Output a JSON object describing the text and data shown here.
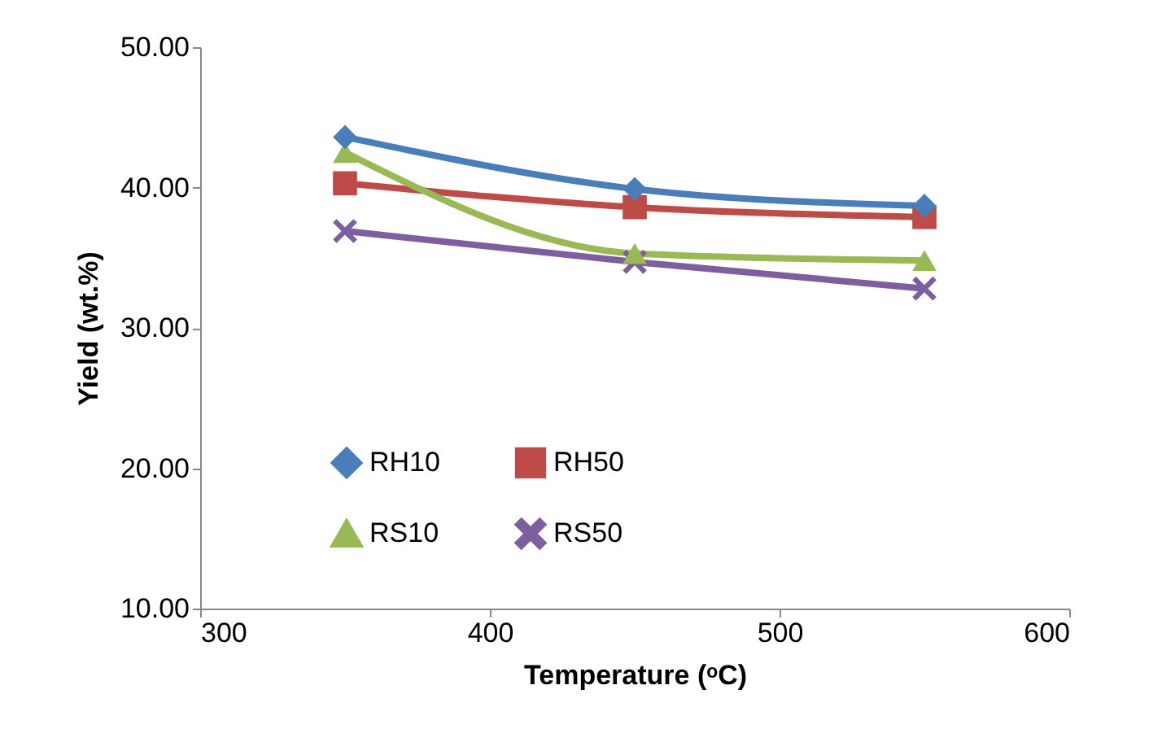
{
  "chart_data": {
    "type": "line",
    "xlabel": "Temperature (ᵒC)",
    "ylabel": "Yield (wt.%)",
    "x": [
      350,
      450,
      550
    ],
    "series": [
      {
        "name": "RH10",
        "color": "#4a7ebb",
        "marker": "diamond",
        "values": [
          43.6,
          39.9,
          38.7
        ]
      },
      {
        "name": "RH50",
        "color": "#be4b48",
        "marker": "square",
        "values": [
          40.3,
          38.6,
          37.9
        ]
      },
      {
        "name": "RS10",
        "color": "#98b954",
        "marker": "triangle",
        "values": [
          42.5,
          35.3,
          34.8
        ]
      },
      {
        "name": "RS50",
        "color": "#7d5fa0",
        "marker": "cross",
        "values": [
          36.9,
          34.7,
          32.8
        ]
      }
    ],
    "xlim": [
      300,
      600
    ],
    "xticks": [
      300,
      400,
      500,
      600
    ],
    "ylim": [
      10,
      50
    ],
    "yticks": [
      {
        "value": 10,
        "label": "10.00"
      },
      {
        "value": 20,
        "label": "20.00"
      },
      {
        "value": 30,
        "label": "30.00"
      },
      {
        "value": 40,
        "label": "40.00"
      },
      {
        "value": 50,
        "label": "50.00"
      }
    ],
    "grid": false,
    "legend": "bottom left",
    "line_style": "solid"
  }
}
